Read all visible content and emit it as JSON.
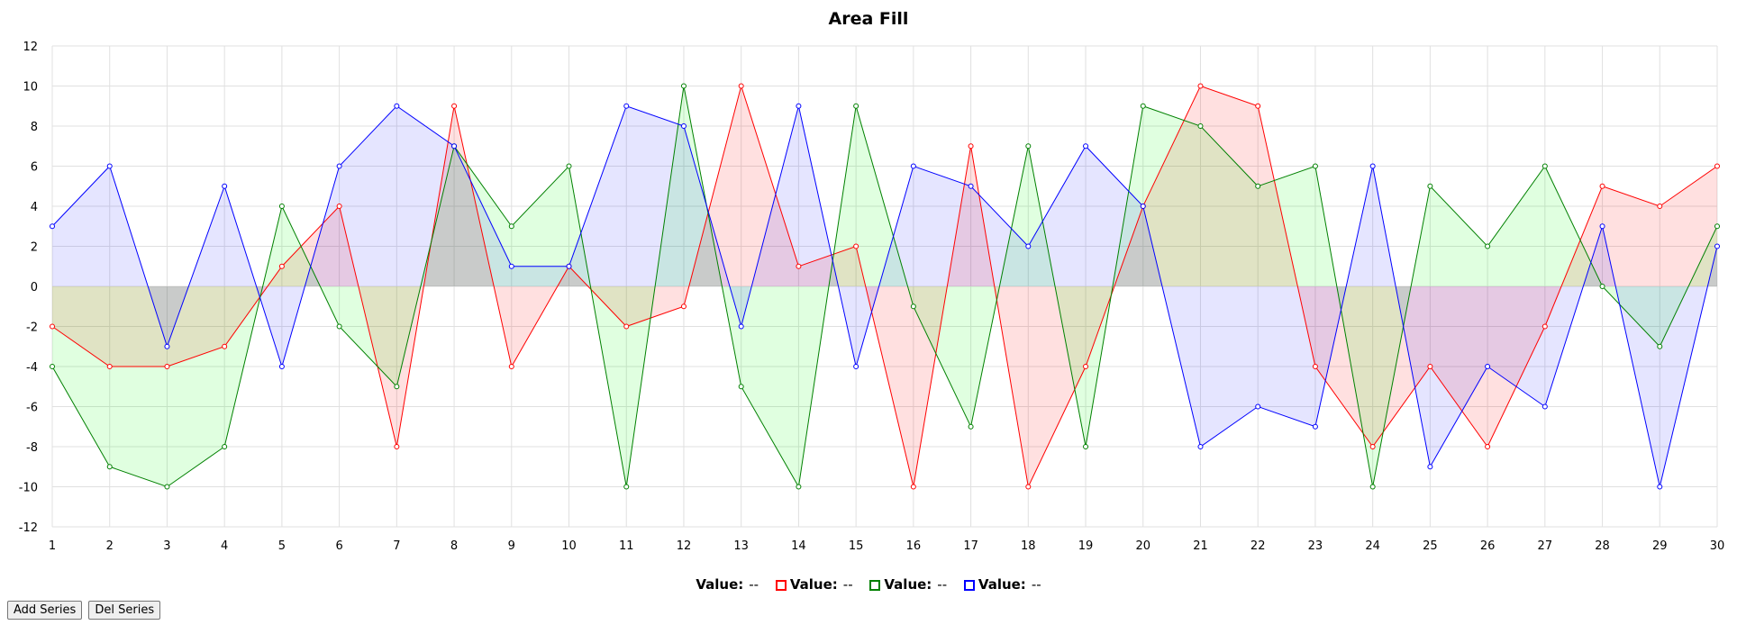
{
  "chart_data": {
    "type": "area",
    "title": "Area Fill",
    "x": [
      1,
      2,
      3,
      4,
      5,
      6,
      7,
      8,
      9,
      10,
      11,
      12,
      13,
      14,
      15,
      16,
      17,
      18,
      19,
      20,
      21,
      22,
      23,
      24,
      25,
      26,
      27,
      28,
      29,
      30
    ],
    "ylim": [
      -12,
      12
    ],
    "yticks": [
      -12,
      -10,
      -8,
      -6,
      -4,
      -2,
      0,
      2,
      4,
      6,
      8,
      10,
      12
    ],
    "grid": true,
    "series": [
      {
        "color": "#ff0000",
        "fill": "rgba(255,0,0,0.12)",
        "values": [
          -2,
          -4,
          -4,
          -3,
          1,
          4,
          -8,
          9,
          -4,
          1,
          -2,
          -1,
          10,
          1,
          2,
          -10,
          7,
          -10,
          -4,
          4,
          10,
          9,
          -4,
          -8,
          -4,
          -8,
          -2,
          5,
          4,
          6
        ]
      },
      {
        "color": "#008000",
        "fill": "rgba(0,255,0,0.12)",
        "values": [
          -4,
          -9,
          -10,
          -8,
          4,
          -2,
          -5,
          7,
          3,
          6,
          -10,
          10,
          -5,
          -10,
          9,
          -1,
          -7,
          7,
          -8,
          9,
          8,
          5,
          6,
          -10,
          5,
          2,
          6,
          0,
          -3,
          3
        ]
      },
      {
        "color": "#0000ff",
        "fill": "rgba(0,0,255,0.10)",
        "values": [
          3,
          6,
          -3,
          5,
          -4,
          6,
          9,
          7,
          1,
          1,
          9,
          8,
          -2,
          9,
          -4,
          6,
          5,
          2,
          7,
          4,
          -8,
          -6,
          -7,
          6,
          -9,
          -4,
          -6,
          3,
          -10,
          2
        ]
      }
    ]
  },
  "legend": {
    "x_label": "Value:",
    "x_value": "--",
    "items": [
      {
        "color": "#ff0000",
        "label": "Value:",
        "value": "--"
      },
      {
        "color": "#008000",
        "label": "Value:",
        "value": "--"
      },
      {
        "color": "#0000ff",
        "label": "Value:",
        "value": "--"
      }
    ]
  },
  "buttons": {
    "add": "Add Series",
    "del": "Del Series"
  }
}
